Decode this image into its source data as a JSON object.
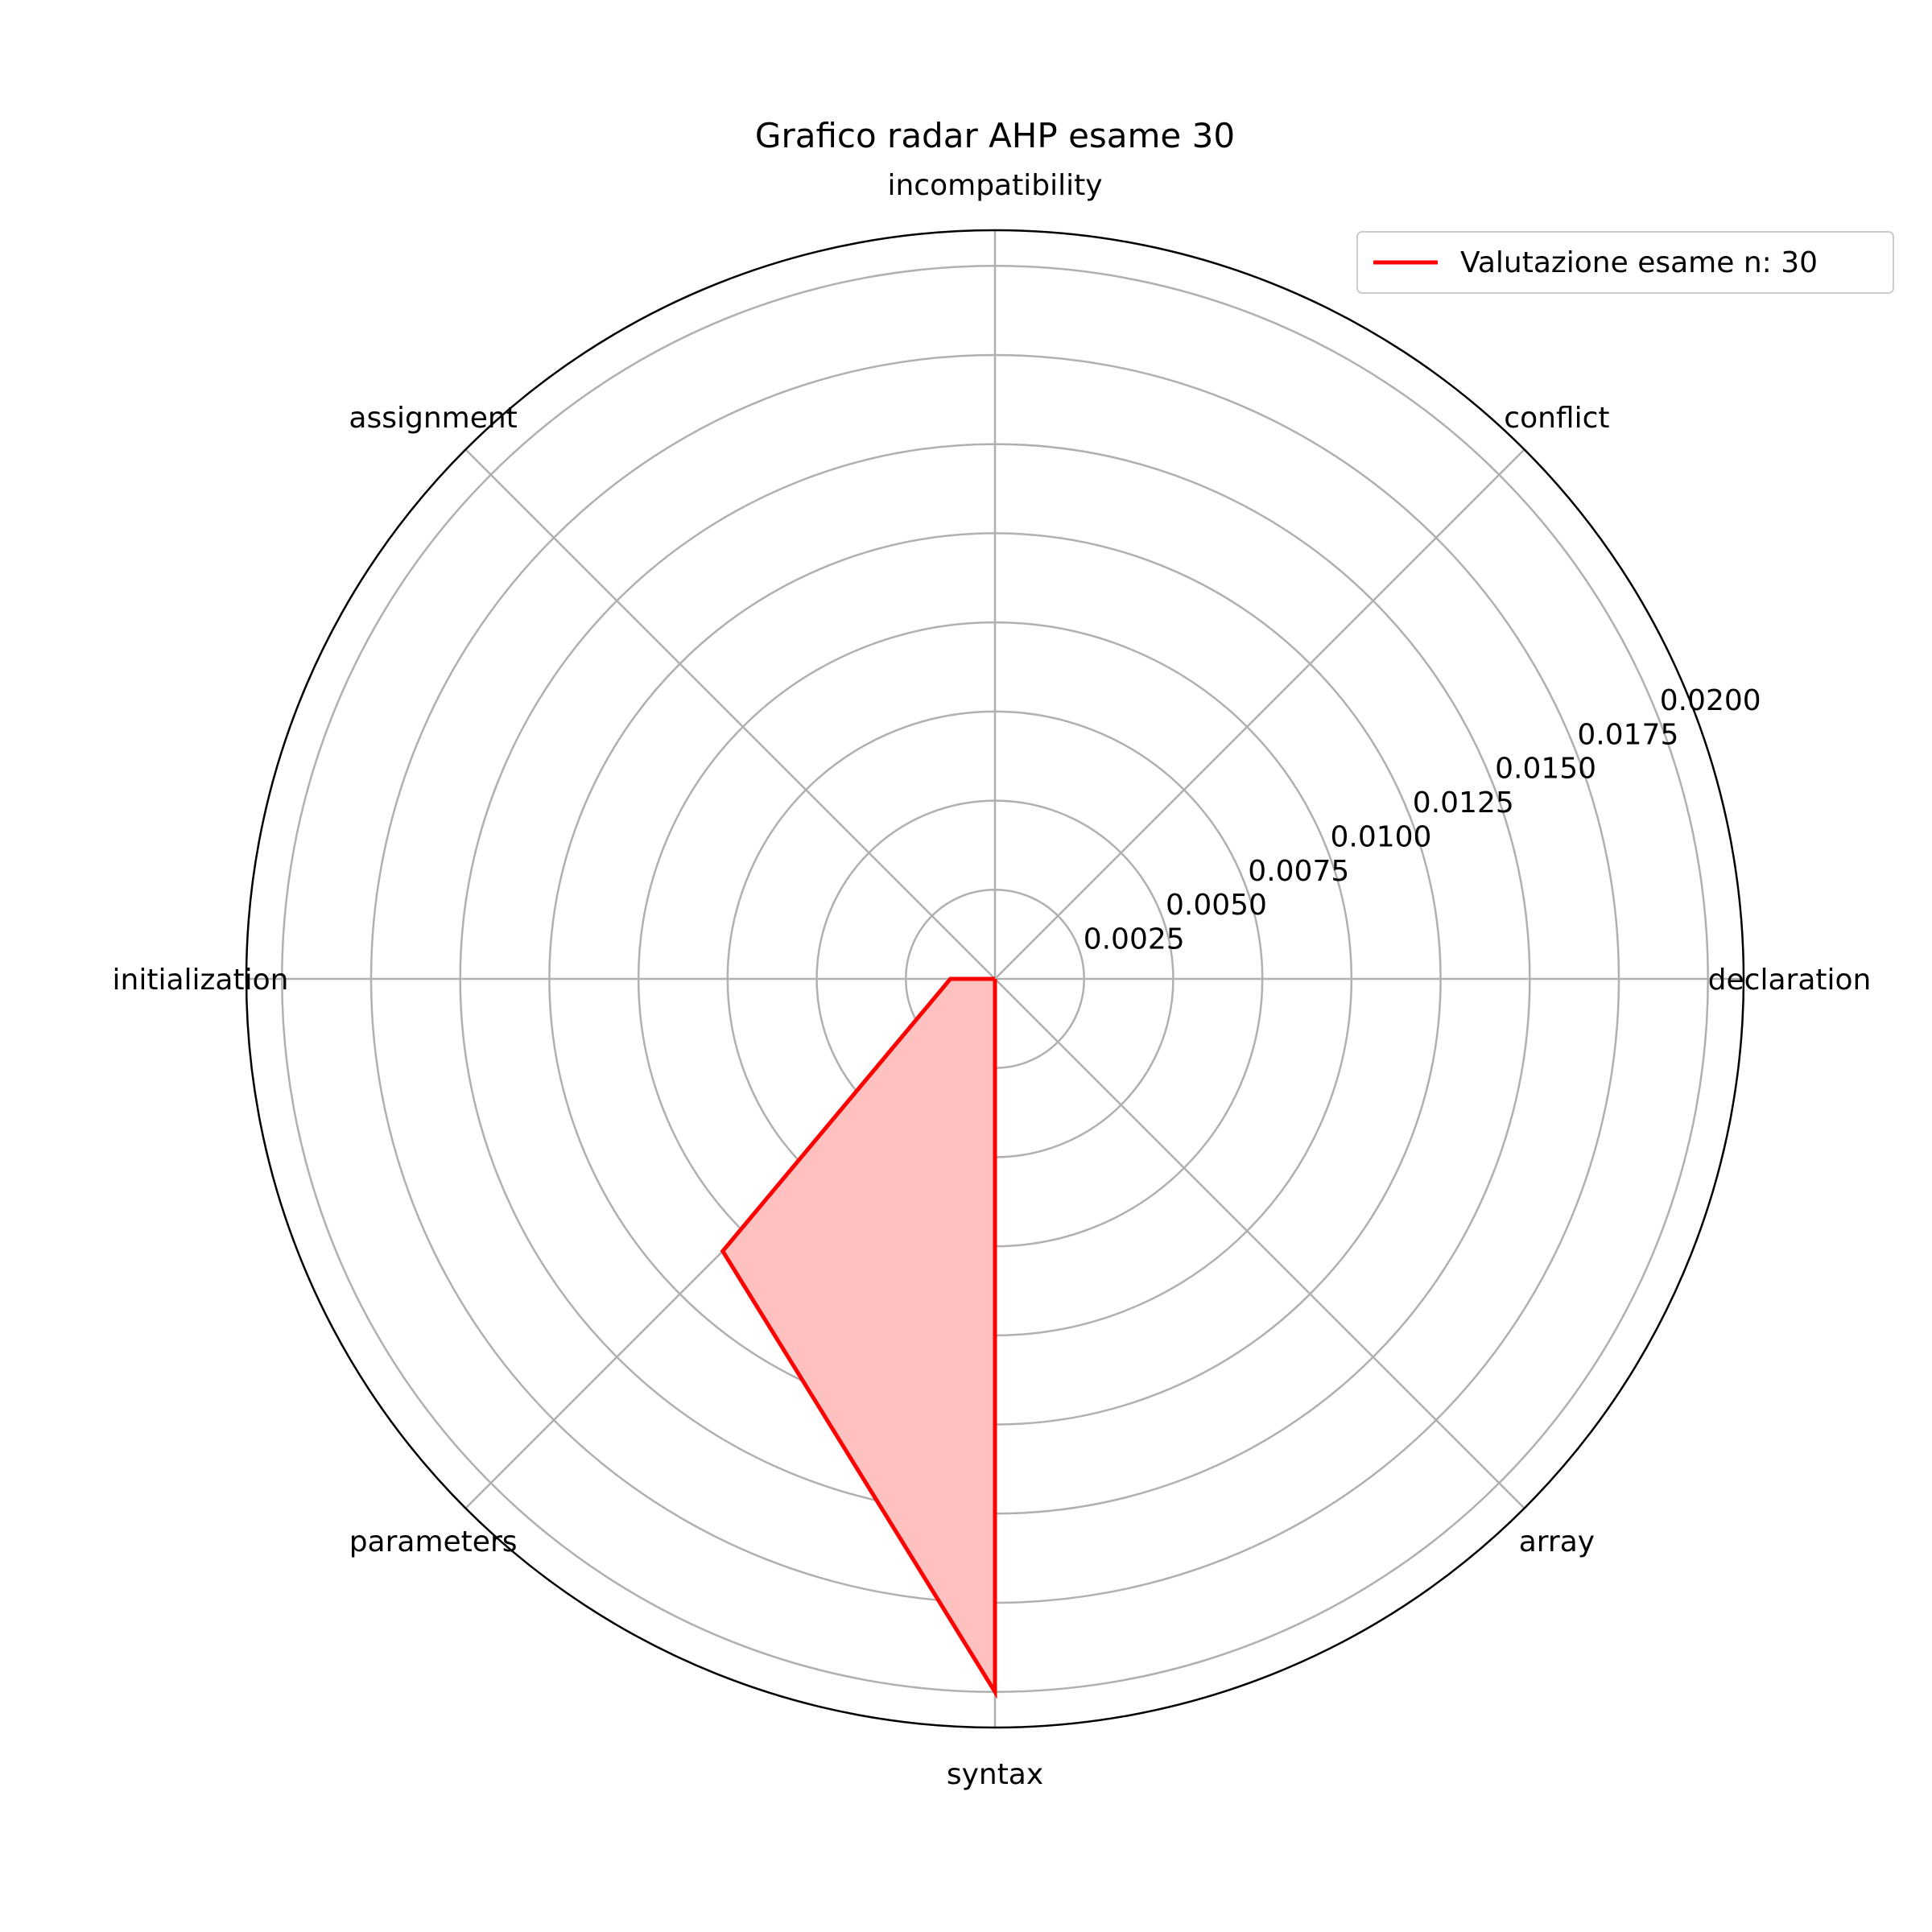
{
  "chart_data": {
    "type": "radar",
    "title": "Grafico radar AHP esame 30",
    "categories": [
      "declaration",
      "conflict",
      "incompatibility",
      "assignment",
      "initialization",
      "parameters",
      "syntax",
      "array"
    ],
    "series": [
      {
        "name": "Valutazione esame n: 30",
        "values": [
          0.0,
          0.0,
          0.0,
          0.0,
          0.00125,
          0.0108,
          0.02,
          0.0
        ]
      }
    ],
    "rlim": [
      0,
      0.021
    ],
    "rticks": [
      0.0025,
      0.005,
      0.0075,
      0.01,
      0.0125,
      0.015,
      0.0175,
      0.02
    ],
    "rtick_labels": [
      "0.0025",
      "0.0050",
      "0.0075",
      "0.0100",
      "0.0125",
      "0.0150",
      "0.0175",
      "0.0200"
    ],
    "grid": true,
    "legend_position": "top-right",
    "colors": {
      "line": "#ff0000",
      "fill": "#ffc0c0",
      "grid": "#b0b0b0",
      "frame": "#000000"
    }
  }
}
